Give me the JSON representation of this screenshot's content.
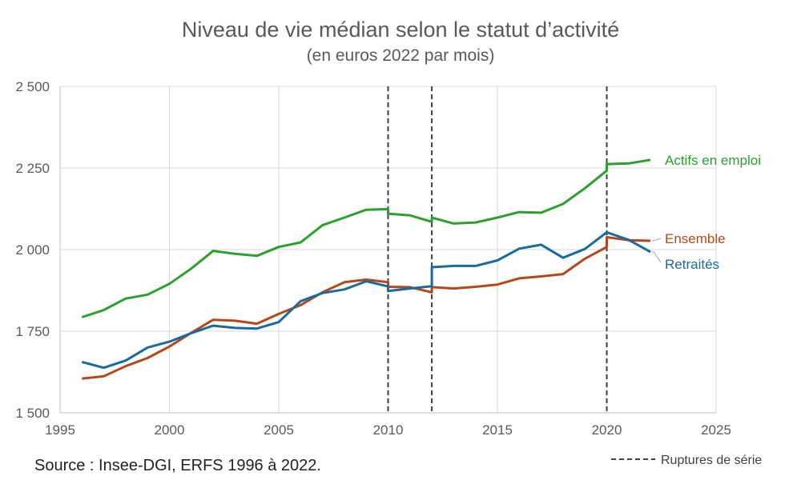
{
  "chart_data": {
    "type": "line",
    "title": "Niveau de vie médian selon le statut d’activité",
    "subtitle": "(en euros 2022 par mois)",
    "xlabel": "",
    "ylabel": "",
    "xlim": [
      1995,
      2025
    ],
    "ylim": [
      1500,
      2500
    ],
    "x_ticks": [
      1995,
      2000,
      2005,
      2010,
      2015,
      2020,
      2025
    ],
    "y_ticks": [
      1500,
      1750,
      2000,
      2250,
      2500
    ],
    "y_tick_labels": [
      "1 500",
      "1 750",
      "2 000",
      "2 250",
      "2 500"
    ],
    "grid": "horizontal",
    "series": [
      {
        "name": "Actifs en emploi",
        "color": "#2ca02c",
        "points": [
          [
            1996,
            1793
          ],
          [
            1997,
            1815
          ],
          [
            1998,
            1850
          ],
          [
            1999,
            1862
          ],
          [
            2000,
            1895
          ],
          [
            2001,
            1942
          ],
          [
            2002,
            1996
          ],
          [
            2003,
            1987
          ],
          [
            2004,
            1981
          ],
          [
            2005,
            2008
          ],
          [
            2006,
            2022
          ],
          [
            2007,
            2075
          ],
          [
            2008,
            2098
          ],
          [
            2009,
            2122
          ],
          [
            2010,
            2124
          ],
          [
            2010,
            2110
          ],
          [
            2011,
            2105
          ],
          [
            2012,
            2085
          ],
          [
            2012,
            2098
          ],
          [
            2013,
            2080
          ],
          [
            2014,
            2083
          ],
          [
            2015,
            2098
          ],
          [
            2016,
            2115
          ],
          [
            2017,
            2113
          ],
          [
            2018,
            2140
          ],
          [
            2019,
            2188
          ],
          [
            2020,
            2242
          ],
          [
            2020,
            2262
          ],
          [
            2021,
            2264
          ],
          [
            2022,
            2275
          ]
        ]
      },
      {
        "name": "Ensemble",
        "color": "#b5481a",
        "points": [
          [
            1996,
            1605
          ],
          [
            1997,
            1612
          ],
          [
            1998,
            1643
          ],
          [
            1999,
            1668
          ],
          [
            2000,
            1703
          ],
          [
            2001,
            1745
          ],
          [
            2002,
            1785
          ],
          [
            2003,
            1782
          ],
          [
            2004,
            1773
          ],
          [
            2005,
            1803
          ],
          [
            2006,
            1830
          ],
          [
            2007,
            1869
          ],
          [
            2008,
            1900
          ],
          [
            2009,
            1908
          ],
          [
            2010,
            1900
          ],
          [
            2010,
            1886
          ],
          [
            2011,
            1885
          ],
          [
            2012,
            1869
          ],
          [
            2012,
            1885
          ],
          [
            2013,
            1881
          ],
          [
            2014,
            1886
          ],
          [
            2015,
            1893
          ],
          [
            2016,
            1912
          ],
          [
            2017,
            1918
          ],
          [
            2018,
            1925
          ],
          [
            2019,
            1972
          ],
          [
            2020,
            2008
          ],
          [
            2020,
            2038
          ],
          [
            2021,
            2029
          ],
          [
            2022,
            2027
          ]
        ]
      },
      {
        "name": "Retraités",
        "color": "#1a6aa0",
        "points": [
          [
            1996,
            1656
          ],
          [
            1997,
            1638
          ],
          [
            1998,
            1660
          ],
          [
            1999,
            1700
          ],
          [
            2000,
            1718
          ],
          [
            2001,
            1744
          ],
          [
            2002,
            1767
          ],
          [
            2003,
            1760
          ],
          [
            2004,
            1758
          ],
          [
            2005,
            1778
          ],
          [
            2006,
            1842
          ],
          [
            2007,
            1867
          ],
          [
            2008,
            1878
          ],
          [
            2009,
            1903
          ],
          [
            2010,
            1887
          ],
          [
            2010,
            1873
          ],
          [
            2011,
            1881
          ],
          [
            2012,
            1888
          ],
          [
            2012,
            1946
          ],
          [
            2013,
            1950
          ],
          [
            2014,
            1950
          ],
          [
            2015,
            1967
          ],
          [
            2016,
            2003
          ],
          [
            2017,
            2015
          ],
          [
            2018,
            1975
          ],
          [
            2019,
            2002
          ],
          [
            2020,
            2053
          ],
          [
            2021,
            2030
          ],
          [
            2022,
            1993
          ]
        ]
      }
    ],
    "series_breaks": [
      2010,
      2012,
      2020
    ],
    "legend": {
      "label": "Ruptures de série",
      "position": "bottom-right"
    },
    "source": "Source : Insee-DGI, ERFS 1996 à 2022."
  }
}
